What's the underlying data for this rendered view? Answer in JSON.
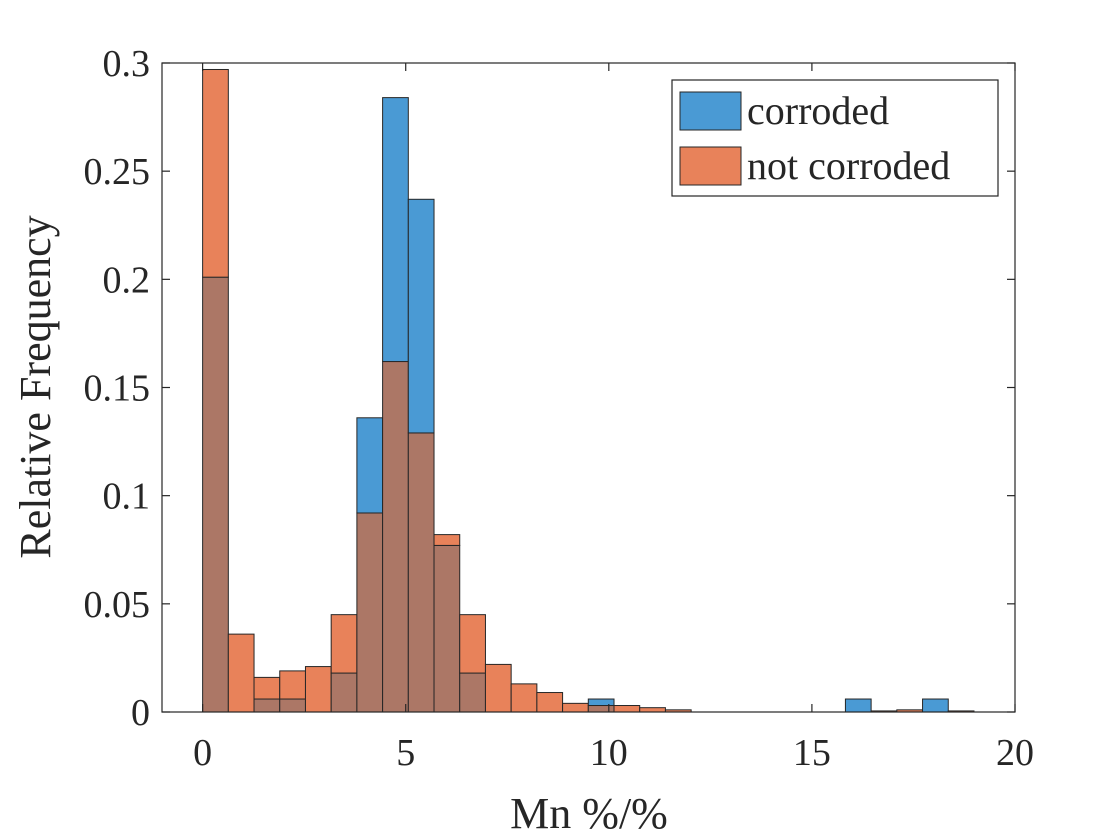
{
  "chart_data": {
    "type": "bar",
    "subtype": "overlapping-histogram",
    "xlabel": "Mn %/%",
    "ylabel": "Relative Frequency",
    "xlim": [
      -1,
      20
    ],
    "ylim": [
      0,
      0.3
    ],
    "xticks": [
      0,
      5,
      10,
      15,
      20
    ],
    "xtick_labels": [
      "0",
      "5",
      "10",
      "15",
      "20"
    ],
    "yticks": [
      0,
      0.05,
      0.1,
      0.15,
      0.2,
      0.25,
      0.3
    ],
    "ytick_labels": [
      "0",
      "0.05",
      "0.1",
      "0.15",
      "0.2",
      "0.25",
      "0.3"
    ],
    "grid": false,
    "legend_position": "top-right",
    "bin_width": 0.633,
    "bin_start": 0,
    "series": [
      {
        "name": "corroded",
        "color": "#4a9ad4",
        "values": [
          0.201,
          0,
          0.006,
          0.006,
          0,
          0.018,
          0.136,
          0.284,
          0.237,
          0.077,
          0.018,
          0,
          0,
          0,
          0,
          0.006,
          0,
          0,
          0,
          0,
          0,
          0,
          0,
          0,
          0,
          0.006,
          0,
          0,
          0.006,
          0
        ]
      },
      {
        "name": "not corroded",
        "color": "#e8825a",
        "values": [
          0.297,
          0.036,
          0.016,
          0.019,
          0.021,
          0.045,
          0.092,
          0.162,
          0.129,
          0.082,
          0.045,
          0.022,
          0.013,
          0.009,
          0.004,
          0.003,
          0.003,
          0.002,
          0.001,
          0,
          0,
          0,
          0,
          0,
          0,
          0,
          0.0005,
          0.001,
          0,
          0.0005
        ]
      }
    ]
  }
}
